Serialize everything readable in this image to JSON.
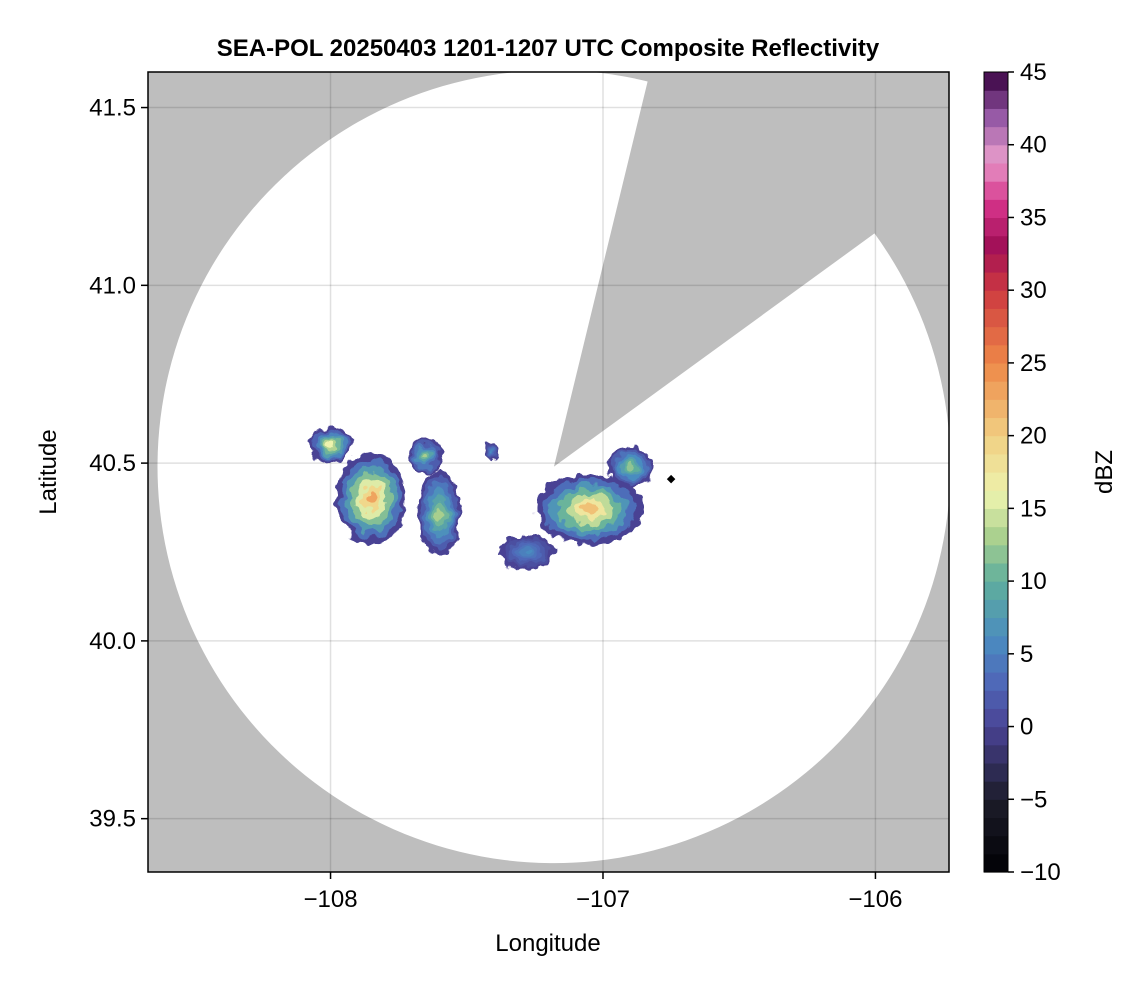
{
  "chart_data": {
    "type": "heatmap",
    "title": "SEA-POL 20250403 1201-1207 UTC Composite Reflectivity",
    "xlabel": "Longitude",
    "ylabel": "Latitude",
    "xlim": [
      -108.67,
      -105.73
    ],
    "ylim": [
      39.35,
      41.6
    ],
    "xticks": [
      -108,
      -107,
      -106
    ],
    "xtick_labels": [
      "−108",
      "−107",
      "−106"
    ],
    "yticks": [
      39.5,
      40.0,
      40.5,
      41.0,
      41.5
    ],
    "ytick_labels": [
      "39.5",
      "40.0",
      "40.5",
      "41.0",
      "41.5"
    ],
    "grid": true,
    "background_color": "#bebebe",
    "coverage_color": "#ffffff",
    "radar": {
      "center": [
        -107.18,
        40.49
      ],
      "range_deg_lat": 1.115,
      "blocked_sector": {
        "from_lon_lat": [
          -106.85,
          41.53
        ],
        "to_lon_lat": [
          -106.05,
          41.12
        ]
      }
    },
    "radar_site_marker": [
      -106.75,
      40.455
    ],
    "echo_regions": [
      {
        "name": "west-cell",
        "center": [
          -107.85,
          40.4
        ],
        "rx": 0.13,
        "ry": 0.13,
        "max_dbz": 23
      },
      {
        "name": "west-cell-north",
        "center": [
          -108.0,
          40.55
        ],
        "rx": 0.08,
        "ry": 0.05,
        "max_dbz": 16
      },
      {
        "name": "central-cell",
        "center": [
          -107.6,
          40.36
        ],
        "rx": 0.08,
        "ry": 0.12,
        "max_dbz": 13
      },
      {
        "name": "central-north",
        "center": [
          -107.65,
          40.52
        ],
        "rx": 0.06,
        "ry": 0.05,
        "max_dbz": 13
      },
      {
        "name": "small-north",
        "center": [
          -107.41,
          40.53
        ],
        "rx": 0.025,
        "ry": 0.03,
        "max_dbz": 6
      },
      {
        "name": "east-cell",
        "center": [
          -107.05,
          40.37
        ],
        "rx": 0.2,
        "ry": 0.1,
        "max_dbz": 21
      },
      {
        "name": "east-tail",
        "center": [
          -107.28,
          40.25
        ],
        "rx": 0.1,
        "ry": 0.05,
        "max_dbz": 6
      },
      {
        "name": "east-north",
        "center": [
          -106.9,
          40.49
        ],
        "rx": 0.08,
        "ry": 0.06,
        "max_dbz": 12
      }
    ],
    "colorbar": {
      "label": "dBZ",
      "min": -10,
      "max": 45,
      "ticks": [
        -10,
        -5,
        0,
        5,
        10,
        15,
        20,
        25,
        30,
        35,
        40,
        45
      ],
      "tick_labels": [
        "−10",
        "−5",
        "0",
        "5",
        "10",
        "15",
        "20",
        "25",
        "30",
        "35",
        "40",
        "45"
      ],
      "levels": 44,
      "colormap_stops": [
        {
          "value": -10,
          "color": "#000004"
        },
        {
          "value": -5,
          "color": "#1c1c2a"
        },
        {
          "value": 0,
          "color": "#4a4394"
        },
        {
          "value": 3,
          "color": "#4f67b8"
        },
        {
          "value": 6,
          "color": "#4a8cc0"
        },
        {
          "value": 10,
          "color": "#5fae9d"
        },
        {
          "value": 13,
          "color": "#a8cf8e"
        },
        {
          "value": 16,
          "color": "#edf3ae"
        },
        {
          "value": 20,
          "color": "#f1cf82"
        },
        {
          "value": 25,
          "color": "#ee8848"
        },
        {
          "value": 30,
          "color": "#cd3940"
        },
        {
          "value": 33,
          "color": "#a10f57"
        },
        {
          "value": 36,
          "color": "#d6338a"
        },
        {
          "value": 39,
          "color": "#e79ccb"
        },
        {
          "value": 42,
          "color": "#9457a4"
        },
        {
          "value": 45,
          "color": "#36003f"
        }
      ]
    }
  }
}
